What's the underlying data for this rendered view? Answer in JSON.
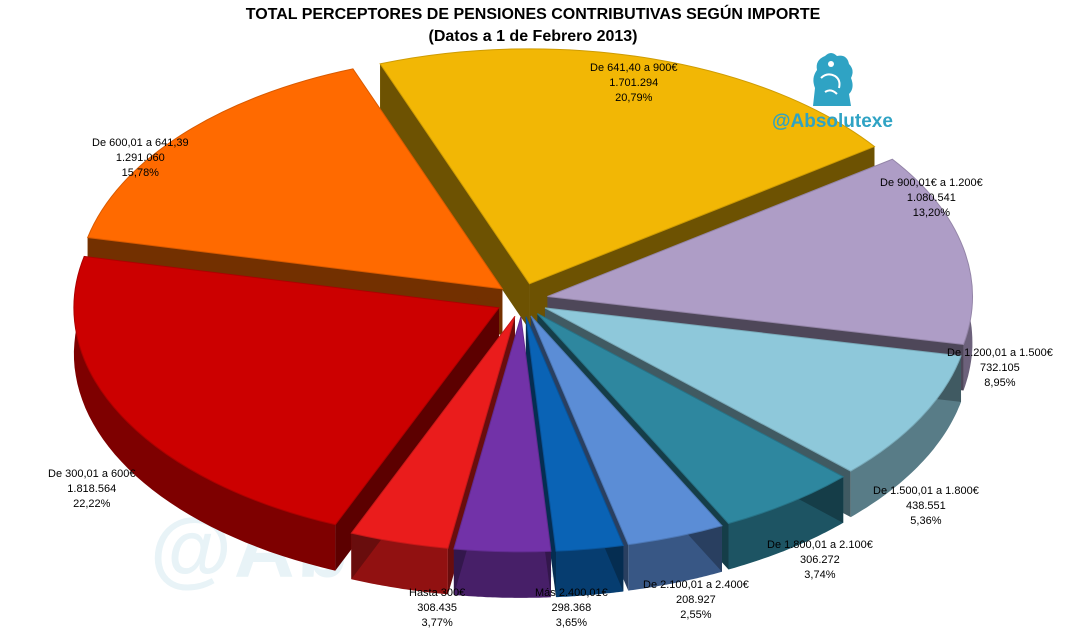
{
  "title": "TOTAL PERCEPTORES DE PENSIONES CONTRIBUTIVAS SEGÚN IMPORTE",
  "subtitle": "(Datos a 1 de Febrero 2013)",
  "brand": {
    "handle": "@Absolutexe",
    "watermark": "@Absolutexe",
    "color": "#2fa3c4"
  },
  "chart_data": {
    "type": "pie",
    "title": "TOTAL PERCEPTORES DE PENSIONES CONTRIBUTIVAS SEGÚN IMPORTE",
    "subtitle": "(Datos a 1 de Febrero 2013)",
    "slices": [
      {
        "label": "De 641,40 a 900€",
        "value": 1701294,
        "value_text": "1.701.294",
        "percent": 20.79,
        "percent_text": "20,79%",
        "color": "#f2b705"
      },
      {
        "label": "De 900,01€ a 1.200€",
        "value": 1080541,
        "value_text": "1.080.541",
        "percent": 13.2,
        "percent_text": "13,20%",
        "color": "#ae9dc6"
      },
      {
        "label": "De 1.200,01 a 1.500€",
        "value": 732105,
        "value_text": "732.105",
        "percent": 8.95,
        "percent_text": "8,95%",
        "color": "#8ec8da"
      },
      {
        "label": "De 1.500,01 a 1.800€",
        "value": 438551,
        "value_text": "438.551",
        "percent": 5.36,
        "percent_text": "5,36%",
        "color": "#2e879f"
      },
      {
        "label": "De 1.800,01 a 2.100€",
        "value": 306272,
        "value_text": "306.272",
        "percent": 3.74,
        "percent_text": "3,74%",
        "color": "#5b8dd6"
      },
      {
        "label": "De 2.100,01 a 2.400€",
        "value": 208927,
        "value_text": "208.927",
        "percent": 2.55,
        "percent_text": "2,55%",
        "color": "#0a63b5"
      },
      {
        "label": "Más 2.400,01€",
        "value": 298368,
        "value_text": "298.368",
        "percent": 3.65,
        "percent_text": "3,65%",
        "color": "#7232a8"
      },
      {
        "label": "Hasta 300€",
        "value": 308435,
        "value_text": "308.435",
        "percent": 3.77,
        "percent_text": "3,77%",
        "color": "#ea1c1c"
      },
      {
        "label": "De 300,01 a 600€",
        "value": 1818564,
        "value_text": "1.818.564",
        "percent": 22.22,
        "percent_text": "22,22%",
        "color": "#cc0000"
      },
      {
        "label": "De 600,01 a 641,39",
        "value": 1291060,
        "value_text": "1.291.060",
        "percent": 15.78,
        "percent_text": "15,78%",
        "color": "#ff6a00"
      }
    ]
  }
}
